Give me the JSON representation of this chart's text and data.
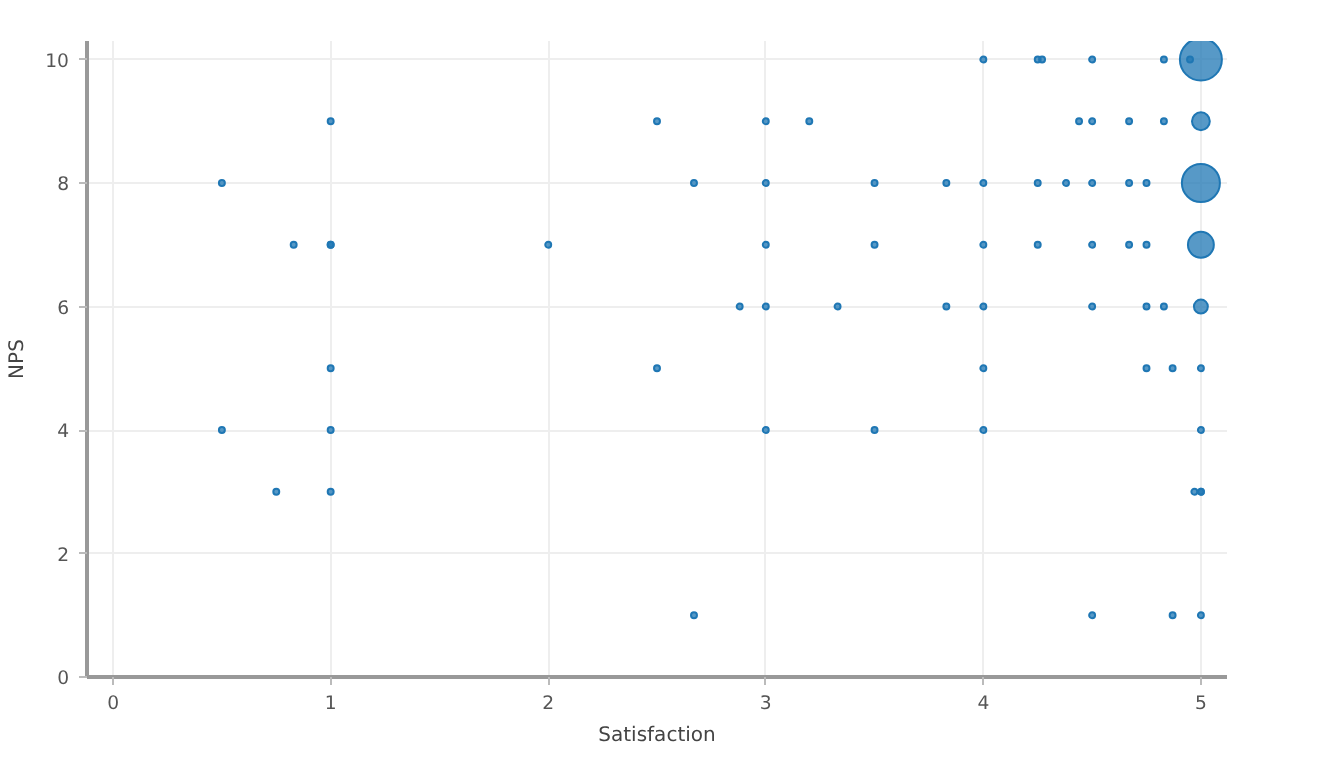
{
  "chart_data": {
    "type": "bubble",
    "xlabel": "Satisfaction",
    "ylabel": "NPS",
    "xlim": [
      -0.12,
      5.12
    ],
    "ylim": [
      0,
      10.3
    ],
    "xticks": [
      0,
      1,
      2,
      3,
      4,
      5
    ],
    "yticks": [
      0,
      2,
      4,
      6,
      8,
      10
    ],
    "grid": true,
    "series": [
      {
        "color": "#1f77b4",
        "x": [
          0.5,
          0.5,
          0.75,
          0.83,
          1,
          1,
          1,
          1,
          1,
          1,
          2,
          2.5,
          2.5,
          2.67,
          2.67,
          2.88,
          3,
          3,
          3,
          3,
          3,
          3.2,
          3.33,
          3.5,
          3.5,
          3.5,
          3.83,
          3.83,
          4,
          4,
          4,
          4,
          4,
          4,
          4.25,
          4.27,
          4.25,
          4.25,
          4.38,
          4.44,
          4.5,
          4.5,
          4.5,
          4.5,
          4.5,
          4.5,
          4.67,
          4.67,
          4.67,
          4.75,
          4.75,
          4.75,
          4.75,
          4.83,
          4.83,
          4.83,
          4.87,
          4.87,
          4.95,
          4.97,
          5,
          5,
          5,
          5,
          5,
          5,
          5,
          5,
          5,
          5
        ],
        "values": [
          8,
          4,
          3,
          7,
          9,
          7,
          5,
          4,
          3,
          7,
          7,
          9,
          5,
          8,
          1,
          6,
          9,
          8,
          7,
          6,
          4,
          9,
          6,
          8,
          7,
          4,
          8,
          6,
          10,
          8,
          7,
          6,
          5,
          4,
          10,
          10,
          8,
          7,
          8,
          9,
          10,
          9,
          8,
          7,
          6,
          1,
          9,
          8,
          7,
          8,
          7,
          6,
          5,
          10,
          9,
          6,
          5,
          1,
          10,
          3,
          10,
          9,
          8,
          7,
          6,
          5,
          4,
          3,
          1,
          3
        ],
        "sizes": [
          0.02,
          0.02,
          0.02,
          0.02,
          0.02,
          0.02,
          0.02,
          0.02,
          0.02,
          0.02,
          0.02,
          0.02,
          0.02,
          0.02,
          0.02,
          0.02,
          0.02,
          0.02,
          0.02,
          0.02,
          0.02,
          0.02,
          0.02,
          0.02,
          0.02,
          0.02,
          0.02,
          0.02,
          0.02,
          0.02,
          0.02,
          0.02,
          0.02,
          0.02,
          0.02,
          0.02,
          0.02,
          0.02,
          0.02,
          0.02,
          0.02,
          0.02,
          0.02,
          0.02,
          0.02,
          0.02,
          0.02,
          0.02,
          0.02,
          0.02,
          0.02,
          0.02,
          0.02,
          0.02,
          0.02,
          0.02,
          0.02,
          0.02,
          0.02,
          0.02,
          1,
          0.18,
          0.82,
          0.38,
          0.11,
          0.02,
          0.02,
          0.02,
          0.02,
          0.02
        ]
      }
    ]
  }
}
